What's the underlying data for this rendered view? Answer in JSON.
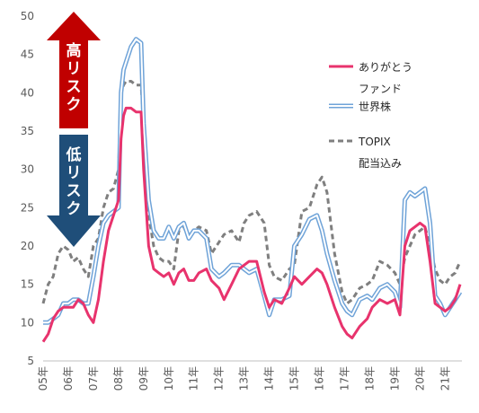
{
  "chart_data": {
    "type": "line",
    "title": "",
    "xlabel": "",
    "ylabel": "",
    "ylim": [
      5,
      50
    ],
    "yticks": [
      5,
      10,
      15,
      20,
      25,
      30,
      35,
      40,
      45,
      50
    ],
    "xlim": [
      2005.0,
      2021.67
    ],
    "xtick_labels": [
      "05年",
      "06年",
      "07年",
      "08年",
      "09年",
      "10年",
      "11年",
      "12年",
      "13年",
      "14年",
      "15年",
      "16年",
      "17年",
      "18年",
      "19年",
      "20年",
      "21年"
    ],
    "xtick_values": [
      2005,
      2006,
      2007,
      2008,
      2009,
      2010,
      2011,
      2012,
      2013,
      2014,
      2015,
      2016,
      2017,
      2018,
      2019,
      2020,
      2021
    ],
    "grid": false,
    "legend_position": "right",
    "annotations": {
      "high_risk": "高リスク",
      "low_risk": "低リスク"
    },
    "series": [
      {
        "name": "ありがとうファンド",
        "color": "#e8336d",
        "style": "solid",
        "x": [
          2005.0,
          2005.2,
          2005.4,
          2005.6,
          2005.8,
          2006.0,
          2006.2,
          2006.4,
          2006.6,
          2006.8,
          2007.0,
          2007.2,
          2007.4,
          2007.6,
          2007.8,
          2008.0,
          2008.1,
          2008.2,
          2008.3,
          2008.5,
          2008.7,
          2008.9,
          2009.0,
          2009.2,
          2009.4,
          2009.6,
          2009.8,
          2010.0,
          2010.2,
          2010.4,
          2010.6,
          2010.8,
          2011.0,
          2011.2,
          2011.5,
          2011.7,
          2012.0,
          2012.2,
          2012.5,
          2012.8,
          2013.0,
          2013.2,
          2013.5,
          2013.8,
          2014.0,
          2014.2,
          2014.5,
          2014.8,
          2015.0,
          2015.3,
          2015.6,
          2015.9,
          2016.1,
          2016.3,
          2016.6,
          2016.9,
          2017.1,
          2017.3,
          2017.6,
          2017.9,
          2018.1,
          2018.4,
          2018.7,
          2019.0,
          2019.2,
          2019.4,
          2019.6,
          2019.8,
          2020.0,
          2020.2,
          2020.4,
          2020.6,
          2020.8,
          2021.0,
          2021.2,
          2021.4,
          2021.6
        ],
        "y": [
          7.5,
          8.5,
          10.5,
          11.5,
          12.0,
          12.0,
          12.0,
          13.0,
          12.5,
          11.0,
          10.0,
          13.0,
          18.0,
          22.0,
          24.0,
          26.0,
          34.0,
          37.0,
          38.0,
          38.0,
          37.5,
          37.5,
          30.0,
          20.0,
          17.0,
          16.5,
          16.0,
          16.5,
          15.0,
          16.5,
          17.0,
          15.5,
          15.5,
          16.5,
          17.0,
          15.5,
          14.5,
          13.0,
          15.0,
          17.0,
          17.5,
          18.0,
          18.0,
          14.0,
          12.0,
          13.0,
          12.5,
          14.5,
          16.0,
          15.0,
          16.0,
          17.0,
          16.5,
          15.0,
          12.0,
          9.5,
          8.5,
          8.0,
          9.5,
          10.5,
          12.0,
          13.0,
          12.5,
          13.0,
          11.0,
          20.0,
          22.0,
          22.5,
          23.0,
          22.5,
          18.0,
          12.5,
          12.0,
          11.5,
          12.0,
          13.0,
          15.0
        ]
      },
      {
        "name": "世界株",
        "color": "#6fa3d8",
        "style": "double",
        "x": [
          2005.0,
          2005.2,
          2005.4,
          2005.6,
          2005.8,
          2006.0,
          2006.2,
          2006.4,
          2006.6,
          2006.8,
          2007.0,
          2007.2,
          2007.4,
          2007.6,
          2007.8,
          2008.0,
          2008.1,
          2008.2,
          2008.3,
          2008.5,
          2008.7,
          2008.9,
          2009.0,
          2009.2,
          2009.4,
          2009.6,
          2009.8,
          2010.0,
          2010.2,
          2010.4,
          2010.6,
          2010.8,
          2011.0,
          2011.2,
          2011.5,
          2011.7,
          2012.0,
          2012.2,
          2012.5,
          2012.8,
          2013.0,
          2013.2,
          2013.5,
          2013.8,
          2014.0,
          2014.2,
          2014.5,
          2014.8,
          2015.0,
          2015.3,
          2015.6,
          2015.9,
          2016.1,
          2016.3,
          2016.6,
          2016.9,
          2017.1,
          2017.3,
          2017.6,
          2017.9,
          2018.1,
          2018.4,
          2018.7,
          2019.0,
          2019.2,
          2019.4,
          2019.6,
          2019.8,
          2020.0,
          2020.2,
          2020.4,
          2020.6,
          2020.8,
          2021.0,
          2021.2,
          2021.4,
          2021.6
        ],
        "y": [
          10.0,
          10.0,
          10.5,
          11.0,
          12.5,
          12.5,
          13.0,
          13.0,
          12.5,
          12.5,
          16.0,
          20.0,
          23.0,
          24.0,
          24.5,
          25.0,
          40.0,
          43.0,
          44.0,
          46.0,
          47.0,
          46.5,
          36.0,
          26.0,
          22.0,
          21.0,
          21.0,
          22.5,
          21.0,
          22.5,
          23.0,
          21.0,
          22.0,
          22.0,
          21.0,
          17.0,
          16.0,
          16.5,
          17.5,
          17.5,
          17.0,
          16.5,
          17.0,
          13.5,
          11.0,
          13.0,
          13.0,
          13.5,
          20.0,
          21.5,
          23.5,
          24.0,
          22.0,
          19.0,
          15.5,
          12.5,
          11.5,
          11.0,
          13.0,
          13.5,
          13.0,
          14.5,
          15.0,
          14.0,
          12.0,
          26.0,
          27.0,
          26.5,
          27.0,
          27.5,
          23.0,
          13.5,
          12.5,
          11.0,
          12.0,
          13.0,
          14.0
        ]
      },
      {
        "name": "TOPIX\n配当込み",
        "color": "#7f7f7f",
        "style": "dashed",
        "x": [
          2005.0,
          2005.2,
          2005.4,
          2005.6,
          2005.8,
          2006.0,
          2006.2,
          2006.4,
          2006.6,
          2006.8,
          2007.0,
          2007.2,
          2007.4,
          2007.6,
          2007.8,
          2008.0,
          2008.1,
          2008.2,
          2008.3,
          2008.5,
          2008.7,
          2008.9,
          2009.0,
          2009.2,
          2009.4,
          2009.6,
          2009.8,
          2010.0,
          2010.2,
          2010.4,
          2010.6,
          2010.8,
          2011.0,
          2011.2,
          2011.5,
          2011.7,
          2012.0,
          2012.2,
          2012.5,
          2012.8,
          2013.0,
          2013.2,
          2013.5,
          2013.8,
          2014.0,
          2014.2,
          2014.5,
          2014.8,
          2015.0,
          2015.3,
          2015.6,
          2015.9,
          2016.1,
          2016.3,
          2016.6,
          2016.9,
          2017.1,
          2017.3,
          2017.6,
          2017.9,
          2018.1,
          2018.4,
          2018.7,
          2019.0,
          2019.2,
          2019.4,
          2019.6,
          2019.8,
          2020.0,
          2020.2,
          2020.4,
          2020.6,
          2020.8,
          2021.0,
          2021.2,
          2021.4,
          2021.6
        ],
        "y": [
          12.5,
          15.0,
          16.0,
          19.0,
          20.0,
          19.5,
          18.0,
          18.5,
          17.0,
          16.0,
          20.0,
          21.0,
          25.0,
          27.0,
          27.5,
          30.0,
          40.0,
          41.0,
          41.5,
          41.5,
          41.0,
          41.0,
          36.0,
          24.0,
          20.0,
          18.5,
          18.0,
          18.0,
          17.0,
          22.0,
          22.5,
          21.0,
          22.0,
          22.5,
          22.0,
          19.0,
          20.5,
          21.5,
          22.0,
          20.5,
          23.0,
          24.0,
          24.5,
          23.0,
          17.5,
          16.0,
          15.5,
          17.0,
          17.5,
          24.5,
          25.0,
          28.0,
          29.0,
          27.0,
          19.0,
          14.0,
          12.5,
          13.0,
          14.5,
          15.0,
          15.5,
          18.0,
          17.5,
          16.5,
          15.0,
          18.5,
          20.0,
          21.5,
          22.0,
          22.5,
          20.0,
          17.0,
          15.5,
          15.0,
          16.0,
          16.5,
          18.0
        ]
      }
    ]
  }
}
